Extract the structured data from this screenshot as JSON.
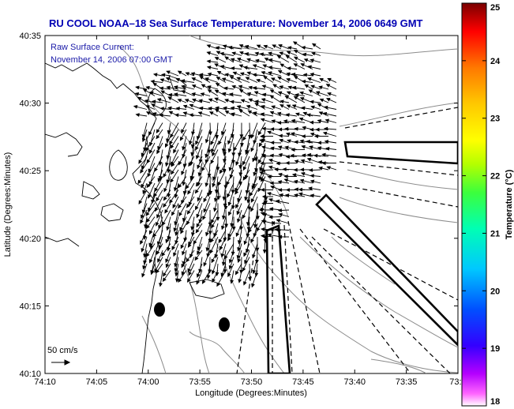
{
  "title": "RU COOL  NOAA–18  Sea Surface Temperature:  November 14, 2006 0649 GMT",
  "current_label": "Raw Surface Current:",
  "current_time": "November 14, 2006 07:00 GMT",
  "scale_label": "50 cm/s",
  "xlabel": "Longitude (Degrees:Minutes)",
  "ylabel": "Latitude (Degrees:Minutes)",
  "x_ticks": [
    "74:10",
    "74:05",
    "74:00",
    "73:55",
    "73:50",
    "73:45",
    "73:40",
    "73:35",
    "73:3"
  ],
  "y_ticks": [
    "40:35",
    "40:30",
    "40:25",
    "40:20",
    "40:15",
    "40:10"
  ],
  "colorbar": {
    "label": "Temperature (°C)",
    "ticks": [
      "25",
      "24",
      "23",
      "22",
      "21",
      "20",
      "19",
      "18"
    ],
    "range": [
      18,
      25
    ]
  },
  "colors": {
    "title": "#0000b4",
    "land_contour": "#000000",
    "bathymetry": "#8c8c8c",
    "vectors": "#000000"
  }
}
